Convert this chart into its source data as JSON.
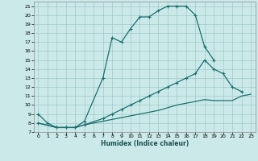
{
  "title": "",
  "xlabel": "Humidex (Indice chaleur)",
  "bg_color": "#cce9e9",
  "grid_color": "#a0c8c8",
  "line_color": "#1a7070",
  "xlim": [
    -0.5,
    23.5
  ],
  "ylim": [
    7,
    21.5
  ],
  "xticks": [
    0,
    1,
    2,
    3,
    4,
    5,
    6,
    7,
    8,
    9,
    10,
    11,
    12,
    13,
    14,
    15,
    16,
    17,
    18,
    19,
    20,
    21,
    22,
    23
  ],
  "yticks": [
    7,
    8,
    9,
    10,
    11,
    12,
    13,
    14,
    15,
    16,
    17,
    18,
    19,
    20,
    21
  ],
  "line1_x": [
    0,
    1,
    2,
    3,
    4,
    5,
    7,
    8,
    9,
    10,
    11,
    12,
    13,
    14,
    15,
    16,
    17,
    18,
    19
  ],
  "line1_y": [
    9,
    8,
    7.5,
    7.5,
    7.5,
    8.2,
    13,
    17.5,
    17,
    18.5,
    19.8,
    19.8,
    20.5,
    21,
    21,
    21,
    20,
    16.5,
    15
  ],
  "line2_x": [
    0,
    2,
    3,
    4,
    5,
    7,
    8,
    9,
    10,
    11,
    12,
    13,
    14,
    15,
    16,
    17,
    18,
    19,
    20,
    21,
    22
  ],
  "line2_y": [
    8,
    7.5,
    7.5,
    7.5,
    7.8,
    8.5,
    9,
    9.5,
    10,
    10.5,
    11,
    11.5,
    12,
    12.5,
    13,
    13.5,
    15,
    14,
    13.5,
    12,
    11.5
  ],
  "line3_x": [
    0,
    2,
    3,
    4,
    5,
    6,
    7,
    8,
    9,
    10,
    11,
    12,
    13,
    14,
    15,
    16,
    17,
    18,
    19,
    20,
    21,
    22,
    23
  ],
  "line3_y": [
    8,
    7.5,
    7.5,
    7.5,
    7.8,
    8,
    8.2,
    8.4,
    8.6,
    8.8,
    9,
    9.2,
    9.4,
    9.7,
    10,
    10.2,
    10.4,
    10.6,
    10.5,
    10.5,
    10.5,
    11,
    11.2
  ]
}
